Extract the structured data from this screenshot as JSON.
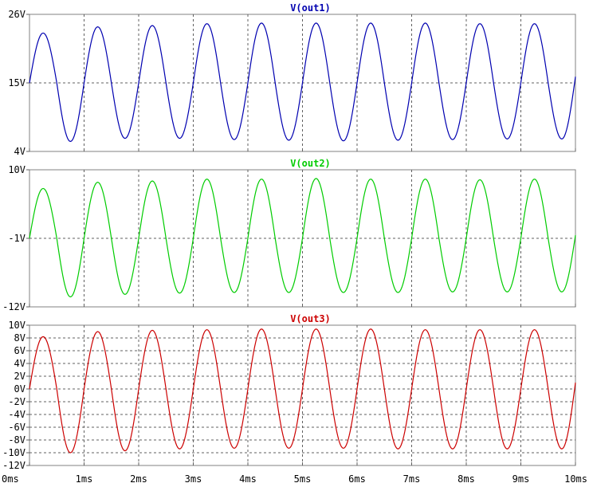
{
  "window": {
    "background": "#ffffff"
  },
  "chart_data": [
    {
      "type": "line",
      "title": "V(out1)",
      "title_color": "#0000b0",
      "x": [
        0,
        0.25,
        0.5,
        0.75,
        1,
        1.25,
        1.5,
        1.75,
        2,
        2.25,
        2.5,
        2.75,
        3,
        3.25,
        3.5,
        3.75,
        4,
        4.25,
        4.5,
        4.75,
        5,
        5.25,
        5.5,
        5.75,
        6,
        6.25,
        6.5,
        6.75,
        7,
        7.25,
        7.5,
        7.75,
        8,
        8.25,
        8.5,
        8.75,
        9,
        9.25,
        9.5,
        9.75,
        10
      ],
      "series": [
        {
          "color": "#0000b0",
          "values": [
            15,
            23,
            15,
            5.6,
            15,
            24,
            15,
            6.1,
            15,
            24.2,
            15,
            6.1,
            15,
            24.5,
            15,
            5.9,
            15,
            24.6,
            15,
            5.8,
            15,
            24.6,
            15,
            5.7,
            15,
            24.6,
            15,
            5.8,
            15,
            24.6,
            15,
            5.9,
            15,
            24.5,
            15,
            6.0,
            15,
            24.5,
            15,
            6.0,
            16
          ]
        }
      ],
      "ylim": [
        4,
        26
      ],
      "yticks": [
        4,
        15,
        26
      ],
      "ytick_labels": [
        "4V",
        "15V",
        "26V"
      ],
      "xlim": [
        0,
        10
      ],
      "xticks": [
        0,
        1,
        2,
        3,
        4,
        5,
        6,
        7,
        8,
        9,
        10
      ],
      "grid": true
    },
    {
      "type": "line",
      "title": "V(out2)",
      "title_color": "#00cc00",
      "x": [
        0,
        0.25,
        0.5,
        0.75,
        1,
        1.25,
        1.5,
        1.75,
        2,
        2.25,
        2.5,
        2.75,
        3,
        3.25,
        3.5,
        3.75,
        4,
        4.25,
        4.5,
        4.75,
        5,
        5.25,
        5.5,
        5.75,
        6,
        6.25,
        6.5,
        6.75,
        7,
        7.25,
        7.5,
        7.75,
        8,
        8.25,
        8.5,
        8.75,
        9,
        9.25,
        9.5,
        9.75,
        10
      ],
      "series": [
        {
          "color": "#00cc00",
          "values": [
            -1,
            7,
            -1,
            -10.4,
            -1,
            8,
            -1,
            -10,
            -1,
            8.2,
            -1,
            -9.8,
            -1,
            8.5,
            -1,
            -9.7,
            -1,
            8.5,
            -1,
            -9.7,
            -1,
            8.6,
            -1,
            -9.7,
            -1,
            8.5,
            -1,
            -9.7,
            -1,
            8.5,
            -1,
            -9.6,
            -1,
            8.4,
            -1,
            -9.6,
            -1,
            8.5,
            -1,
            -9.6,
            -0.5
          ]
        }
      ],
      "ylim": [
        -12,
        10
      ],
      "yticks": [
        -12,
        -1,
        10
      ],
      "ytick_labels": [
        "-12V",
        "-1V",
        "10V"
      ],
      "xlim": [
        0,
        10
      ],
      "xticks": [
        0,
        1,
        2,
        3,
        4,
        5,
        6,
        7,
        8,
        9,
        10
      ],
      "grid": true
    },
    {
      "type": "line",
      "title": "V(out3)",
      "title_color": "#cc0000",
      "x": [
        0,
        0.25,
        0.5,
        0.75,
        1,
        1.25,
        1.5,
        1.75,
        2,
        2.25,
        2.5,
        2.75,
        3,
        3.25,
        3.5,
        3.75,
        4,
        4.25,
        4.5,
        4.75,
        5,
        5.25,
        5.5,
        5.75,
        6,
        6.25,
        6.5,
        6.75,
        7,
        7.25,
        7.5,
        7.75,
        8,
        8.25,
        8.5,
        8.75,
        9,
        9.25,
        9.5,
        9.75,
        10
      ],
      "series": [
        {
          "color": "#cc0000",
          "values": [
            0,
            8.2,
            0,
            -10,
            0,
            9,
            0,
            -9.7,
            0,
            9.2,
            0,
            -9.4,
            0,
            9.3,
            0,
            -9.3,
            0,
            9.4,
            0,
            -9.3,
            0,
            9.4,
            0,
            -9.3,
            0,
            9.4,
            0,
            -9.4,
            0,
            9.3,
            0,
            -9.4,
            0,
            9.3,
            0,
            -9.4,
            0,
            9.3,
            0,
            -9.4,
            1
          ]
        }
      ],
      "ylim": [
        -12,
        10
      ],
      "yticks": [
        -12,
        -10,
        -8,
        -6,
        -4,
        -2,
        0,
        2,
        4,
        6,
        8,
        10
      ],
      "ytick_labels": [
        "-12V",
        "-10V",
        "-8V",
        "-6V",
        "-4V",
        "-2V",
        "0V",
        "2V",
        "4V",
        "6V",
        "8V",
        "10V"
      ],
      "xlim": [
        0,
        10
      ],
      "xticks": [
        0,
        1,
        2,
        3,
        4,
        5,
        6,
        7,
        8,
        9,
        10
      ],
      "xtick_labels": [
        "0ms",
        "1ms",
        "2ms",
        "3ms",
        "4ms",
        "5ms",
        "6ms",
        "7ms",
        "8ms",
        "9ms",
        "10ms"
      ],
      "grid": true
    }
  ]
}
